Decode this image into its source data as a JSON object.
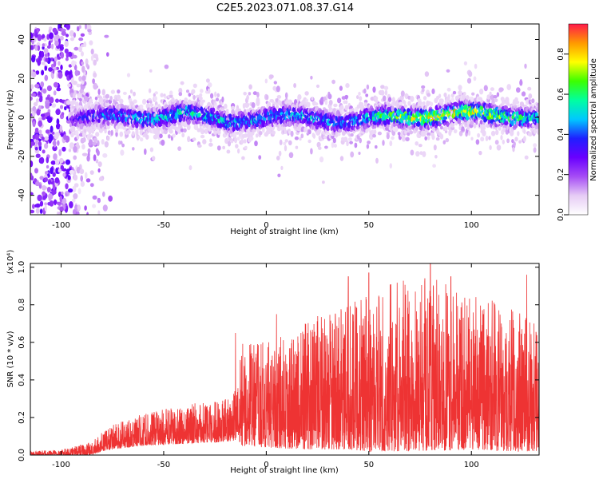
{
  "figure": {
    "title": "C2E5.2023.071.08.37.G14"
  },
  "colors": {
    "snr_line": "#ee3333",
    "frame": "#000000",
    "colormap": [
      "#ffffff",
      "#e6ccf5",
      "#a64df5",
      "#6a00ff",
      "#1f1fff",
      "#00c8ff",
      "#00ffa0",
      "#3cff00",
      "#ffff00",
      "#ff9900",
      "#ff1a4a"
    ]
  },
  "chart_data": [
    {
      "type": "heatmap",
      "title": "C2E5.2023.071.08.37.G14",
      "xlabel": "Height of straight line (km)",
      "ylabel": "Frequency (Hz)",
      "xlim": [
        -115,
        133
      ],
      "ylim": [
        -50,
        48
      ],
      "x_ticks": [
        -100,
        -50,
        0,
        50,
        100
      ],
      "y_ticks": [
        -40,
        -20,
        0,
        20,
        40
      ],
      "grid": false,
      "colorbar": {
        "label": "Normalized spectral amplitude",
        "range": [
          0.0,
          0.95
        ],
        "ticks": [
          0.0,
          0.2,
          0.4,
          0.6,
          0.8
        ],
        "placement": "right"
      },
      "signal_band": {
        "x": [
          -95,
          -80,
          -60,
          -40,
          -20,
          0,
          20,
          40,
          60,
          80,
          100,
          120,
          133
        ],
        "center_frequency": [
          0,
          0,
          0,
          2,
          -2,
          0,
          0,
          -2,
          0,
          1,
          2,
          1,
          0
        ],
        "peak_amplitude": [
          0.35,
          0.5,
          0.55,
          0.65,
          0.6,
          0.55,
          0.6,
          0.5,
          0.75,
          0.9,
          0.85,
          0.75,
          0.6
        ]
      },
      "noise_region_x": [
        -115,
        -78
      ]
    },
    {
      "type": "line",
      "xlabel": "Height of straight line (km)",
      "ylabel": "SNR (10 * v/v)",
      "y_multiplier": "(x10⁴)",
      "xlim": [
        -115,
        133
      ],
      "ylim": [
        0,
        1.02
      ],
      "x_ticks": [
        -100,
        -50,
        0,
        50,
        100
      ],
      "y_ticks": [
        0.0,
        0.2,
        0.4,
        0.6,
        0.8,
        1.0
      ],
      "grid": false,
      "series": [
        {
          "envelope_x": [
            -115,
            -100,
            -85,
            -80,
            -75,
            -60,
            -40,
            -20,
            -14,
            -13,
            0,
            20,
            40,
            50,
            60,
            80,
            100,
            120,
            133
          ],
          "envelope_low": [
            0.0,
            0.0,
            0.0,
            0.02,
            0.03,
            0.05,
            0.06,
            0.07,
            0.08,
            0.05,
            0.04,
            0.03,
            0.03,
            0.02,
            0.02,
            0.02,
            0.03,
            0.02,
            0.02
          ],
          "envelope_high": [
            0.02,
            0.03,
            0.07,
            0.12,
            0.16,
            0.22,
            0.27,
            0.3,
            0.37,
            0.62,
            0.6,
            0.72,
            0.8,
            0.9,
            0.92,
            0.95,
            0.85,
            0.8,
            0.7
          ],
          "peaks": [
            [
              -15,
              0.65
            ],
            [
              5,
              0.75
            ],
            [
              40,
              0.95
            ],
            [
              50,
              0.97
            ],
            [
              80,
              1.02
            ],
            [
              90,
              0.95
            ],
            [
              127,
              0.96
            ]
          ]
        }
      ]
    }
  ]
}
